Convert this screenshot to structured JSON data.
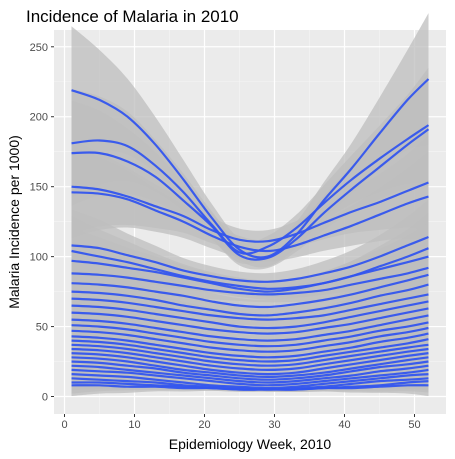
{
  "chart_data": {
    "type": "line",
    "title": "Incidence of Malaria in 2010",
    "xlabel": "Epidemiology Week, 2010",
    "ylabel": "Malaria Incidence per 1000)",
    "xlim": [
      -1.5,
      54.5
    ],
    "ylim": [
      -12.5,
      262
    ],
    "x_ticks": [
      0,
      10,
      20,
      30,
      40,
      50
    ],
    "y_ticks": [
      0,
      50,
      100,
      150,
      200,
      250
    ],
    "grid": true,
    "smoothed_with_confidence_band": true,
    "x": [
      1,
      5,
      9,
      13,
      17,
      21,
      25,
      29,
      33,
      37,
      41,
      45,
      49,
      52
    ],
    "series": [
      {
        "values": [
          219,
          212,
          200,
          180,
          155,
          128,
          105,
          100,
          115,
          140,
          163,
          188,
          212,
          227
        ]
      },
      {
        "values": [
          181,
          183,
          179,
          165,
          146,
          123,
          103,
          107,
          120,
          138,
          155,
          170,
          184,
          194
        ]
      },
      {
        "values": [
          174,
          174,
          168,
          157,
          140,
          122,
          101,
          99,
          112,
          131,
          148,
          164,
          180,
          191
        ]
      },
      {
        "values": [
          150,
          148,
          143,
          136,
          129,
          119,
          112,
          111,
          116,
          124,
          132,
          139,
          147,
          153
        ]
      },
      {
        "values": [
          146,
          145,
          141,
          133,
          125,
          115,
          107,
          104,
          108,
          115,
          122,
          130,
          138,
          143
        ]
      },
      {
        "values": [
          108,
          106,
          101,
          96,
          90,
          86,
          83,
          82,
          84,
          88,
          93,
          100,
          108,
          114
        ]
      },
      {
        "values": [
          104,
          100,
          96,
          91,
          86,
          82,
          79,
          77,
          78,
          81,
          86,
          93,
          100,
          106
        ]
      },
      {
        "values": [
          97,
          95,
          92,
          89,
          85,
          81,
          77,
          75,
          77,
          81,
          86,
          91,
          96,
          100
        ]
      },
      {
        "values": [
          88,
          87,
          85,
          82,
          79,
          76,
          74,
          73,
          74,
          76,
          80,
          84,
          88,
          92
        ]
      },
      {
        "values": [
          81,
          80,
          78,
          75,
          72,
          68,
          65,
          64,
          66,
          69,
          73,
          78,
          83,
          87
        ]
      },
      {
        "values": [
          75,
          74,
          72,
          69,
          65,
          62,
          59,
          58,
          60,
          63,
          67,
          72,
          76,
          80
        ]
      },
      {
        "values": [
          70,
          69,
          67,
          64,
          61,
          58,
          56,
          55,
          56,
          58,
          62,
          66,
          70,
          73
        ]
      },
      {
        "values": [
          65,
          64,
          62,
          59,
          56,
          53,
          50,
          49,
          50,
          53,
          57,
          61,
          65,
          68
        ]
      },
      {
        "values": [
          60,
          59,
          57,
          54,
          51,
          48,
          46,
          45,
          46,
          49,
          52,
          56,
          60,
          63
        ]
      },
      {
        "values": [
          55,
          54,
          52,
          49,
          46,
          43,
          41,
          40,
          41,
          44,
          47,
          51,
          55,
          58
        ]
      },
      {
        "values": [
          51,
          50,
          48,
          45,
          42,
          39,
          37,
          36,
          37,
          40,
          43,
          47,
          50,
          53
        ]
      },
      {
        "values": [
          47,
          46,
          44,
          41,
          38,
          35,
          33,
          32,
          33,
          36,
          39,
          43,
          46,
          49
        ]
      },
      {
        "values": [
          43,
          42,
          40,
          37,
          34,
          31,
          29,
          28,
          29,
          32,
          35,
          39,
          42,
          45
        ]
      },
      {
        "values": [
          40,
          39,
          37,
          34,
          31,
          28,
          26,
          25,
          26,
          29,
          32,
          35,
          38,
          41
        ]
      },
      {
        "values": [
          37,
          36,
          34,
          31,
          28,
          25,
          23,
          22,
          23,
          26,
          29,
          32,
          35,
          37
        ]
      },
      {
        "values": [
          34,
          33,
          31,
          28,
          25,
          22,
          20,
          19,
          20,
          23,
          26,
          29,
          32,
          34
        ]
      },
      {
        "values": [
          31,
          30,
          28,
          25,
          22,
          19,
          17,
          16,
          17,
          20,
          23,
          26,
          29,
          31
        ]
      },
      {
        "values": [
          28,
          27,
          25,
          22,
          19,
          17,
          15,
          14,
          15,
          17,
          20,
          23,
          26,
          28
        ]
      },
      {
        "values": [
          25,
          24,
          22,
          20,
          17,
          15,
          13,
          12,
          13,
          15,
          18,
          21,
          23,
          25
        ]
      },
      {
        "values": [
          22,
          21,
          19,
          17,
          15,
          13,
          11,
          10,
          11,
          13,
          15,
          18,
          20,
          22
        ]
      },
      {
        "values": [
          19,
          18,
          17,
          15,
          13,
          11,
          9,
          8,
          9,
          11,
          13,
          15,
          17,
          19
        ]
      },
      {
        "values": [
          16,
          15,
          14,
          12,
          10,
          8,
          7,
          6,
          7,
          9,
          11,
          13,
          15,
          16
        ]
      },
      {
        "values": [
          13,
          12,
          11,
          10,
          8,
          7,
          6,
          5,
          6,
          7,
          9,
          11,
          12,
          13
        ]
      },
      {
        "values": [
          10,
          10,
          9,
          8,
          7,
          6,
          5,
          5,
          5,
          6,
          7,
          8,
          10,
          11
        ]
      },
      {
        "values": [
          8,
          8,
          7,
          7,
          6,
          6,
          5,
          5,
          5,
          6,
          6,
          7,
          8,
          8
        ]
      }
    ]
  },
  "colors": {
    "line": "#3355ee",
    "band": "#bdbdbd",
    "panel": "#ebebeb",
    "grid_major": "#ffffff",
    "grid_minor": "#f5f5f5"
  }
}
